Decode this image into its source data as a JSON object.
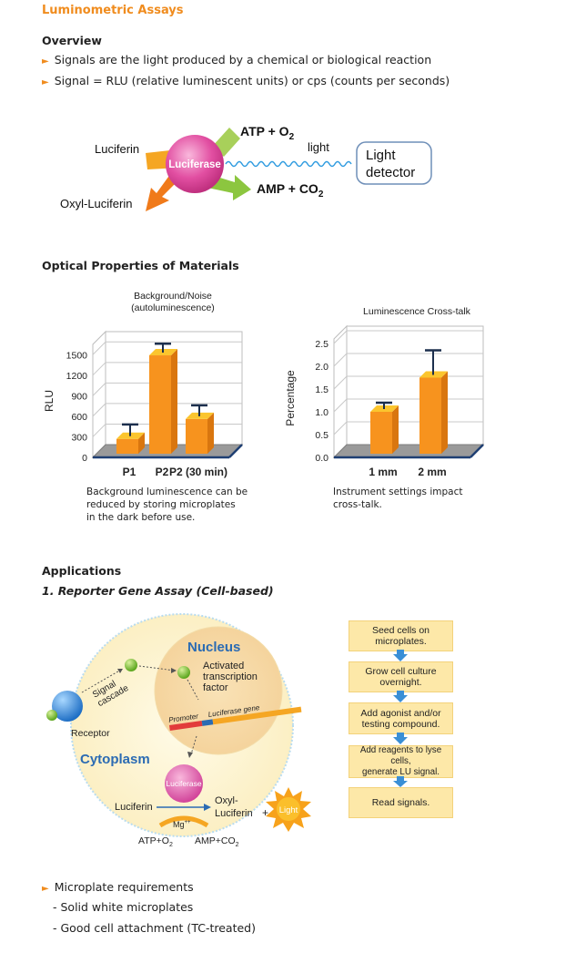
{
  "page_title": "Luminometric Assays",
  "overview": {
    "heading": "Overview",
    "bullets": [
      "Signals are the light produced by a chemical or biological reaction",
      "Signal = RLU (relative luminescent units) or cps (counts per seconds)"
    ]
  },
  "reaction_diagram": {
    "enzyme": "Luciferase",
    "substrate": "Luciferin",
    "product": "Oxyl-Luciferin",
    "inputs": "ATP + O",
    "inputs_sub": "2",
    "outputs": "AMP + CO",
    "outputs_sub": "2",
    "light": "light",
    "detector_line1": "Light",
    "detector_line2": "detector"
  },
  "optical": {
    "heading": "Optical Properties of Materials",
    "chart1_caption": "Background luminescence can be reduced by storing microplates in the dark before use.",
    "chart1_caption_lines": [
      "Background luminescence can be",
      "reduced by storing microplates",
      "in the dark before use."
    ],
    "chart2_caption_lines": [
      "Instrument settings impact",
      "cross-talk."
    ]
  },
  "chart_data": [
    {
      "type": "bar",
      "title": "Background/Noise (autoluminescence)",
      "title_lines": [
        "Background/Noise",
        "(autoluminescence)"
      ],
      "ylabel": "RLU",
      "categories": [
        "P1",
        "P2",
        "P2 (30 min)"
      ],
      "values": [
        270,
        1490,
        560
      ],
      "error_tops": [
        480,
        1660,
        760
      ],
      "ylim": [
        0,
        1650
      ],
      "yticks": [
        "0",
        "300",
        "600",
        "900",
        "1200",
        "1500"
      ],
      "ytick_values": [
        0,
        300,
        600,
        900,
        1200,
        1500
      ],
      "bar_color": "#f7931e"
    },
    {
      "type": "bar",
      "title": "Luminescence Cross-talk",
      "ylabel": "Percentage",
      "categories": [
        "1 mm",
        "2 mm"
      ],
      "values": [
        1.0,
        1.75
      ],
      "error_tops": [
        1.2,
        2.35
      ],
      "ylim": [
        0,
        2.6
      ],
      "yticks": [
        "0.0",
        "0.5",
        "1.0",
        "1.5",
        "2.0",
        "2.5"
      ],
      "ytick_values": [
        0,
        0.5,
        1.0,
        1.5,
        2.0,
        2.5
      ],
      "bar_color": "#f7931e"
    }
  ],
  "applications": {
    "heading": "Applications",
    "subheading": "1. Reporter Gene Assay (Cell-based)",
    "cell": {
      "nucleus": "Nucleus",
      "tf_lines": [
        "Activated",
        "transcription",
        "factor"
      ],
      "signal_lines": [
        "Signal",
        "cascade"
      ],
      "promoter": "Promoter",
      "gene": "Luciferase gene",
      "receptor": "Receptor",
      "cytoplasm": "Cytoplasm",
      "enzyme": "Luciferase",
      "substrate": "Luciferin",
      "product_lines": [
        "Oxyl-",
        "Luciferin"
      ],
      "plus": "+",
      "light": "Light",
      "mg": "Mg",
      "mg_sup": "++",
      "atp": "ATP+O",
      "atp_sub": "2",
      "amp": "AMP+CO",
      "amp_sub": "2"
    },
    "steps": [
      [
        "Seed cells on",
        "microplates."
      ],
      [
        "Grow cell culture",
        "overnight."
      ],
      [
        "Add agonist and/or",
        "testing compound."
      ],
      [
        "Add reagents to lyse cells,",
        "generate LU signal."
      ],
      [
        "Read signals."
      ]
    ]
  },
  "requirements": {
    "bullet": "Microplate requirements",
    "items": [
      "- Solid white microplates",
      "- Good cell attachment (TC-treated)"
    ]
  },
  "colors": {
    "accent": "#f08c1e",
    "bar": "#f7931e",
    "flow_box": "#fde8a8",
    "flow_arrow": "#3a8fd6"
  }
}
